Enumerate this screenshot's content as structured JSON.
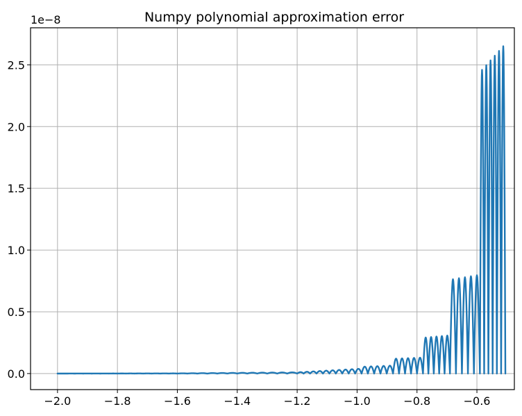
{
  "chart_data": {
    "type": "line",
    "title": "Numpy polynomial approximation error",
    "xlabel": "",
    "ylabel": "",
    "y_offset_text": "1e−8",
    "xlim": [
      -2.09,
      -0.475
    ],
    "ylim": [
      -0.13,
      2.8
    ],
    "grid": true,
    "x_ticks": [
      {
        "value": -2.0,
        "label": "−2.0"
      },
      {
        "value": -1.8,
        "label": "−1.8"
      },
      {
        "value": -1.6,
        "label": "−1.6"
      },
      {
        "value": -1.4,
        "label": "−1.4"
      },
      {
        "value": -1.2,
        "label": "−1.2"
      },
      {
        "value": -1.0,
        "label": "−1.0"
      },
      {
        "value": -0.8,
        "label": "−0.8"
      },
      {
        "value": -0.6,
        "label": "−0.6"
      }
    ],
    "y_ticks": [
      {
        "value": 0.0,
        "label": "0.0"
      },
      {
        "value": 0.5,
        "label": "0.5"
      },
      {
        "value": 1.0,
        "label": "1.0"
      },
      {
        "value": 1.5,
        "label": "1.5"
      },
      {
        "value": 2.0,
        "label": "2.0"
      },
      {
        "value": 2.5,
        "label": "2.5"
      }
    ],
    "series": [
      {
        "color": "#1f77b4",
        "segments": [
          {
            "x_start": -2.0,
            "x_end": -1.6,
            "arches": 14,
            "start_peak": 0.0,
            "end_peak": 0.0015
          },
          {
            "x_start": -1.6,
            "x_end": -1.2,
            "arches": 12,
            "start_peak": 0.0015,
            "end_peak": 0.01
          },
          {
            "x_start": -1.2,
            "x_end": -0.985,
            "arches": 10,
            "start_peak": 0.01,
            "end_peak": 0.04
          },
          {
            "x_start": -0.985,
            "x_end": -0.88,
            "arches": 5,
            "start_peak": 0.055,
            "end_peak": 0.065
          },
          {
            "x_start": -0.88,
            "x_end": -0.78,
            "arches": 5,
            "start_peak": 0.12,
            "end_peak": 0.13
          },
          {
            "x_start": -0.78,
            "x_end": -0.69,
            "arches": 5,
            "start_peak": 0.29,
            "end_peak": 0.31
          },
          {
            "x_start": -0.69,
            "x_end": -0.59,
            "arches": 5,
            "start_peak": 0.76,
            "end_peak": 0.8
          },
          {
            "x_start": -0.59,
            "x_end": -0.505,
            "arches": 6,
            "start_peak": 2.44,
            "end_peak": 2.67
          }
        ]
      }
    ]
  }
}
